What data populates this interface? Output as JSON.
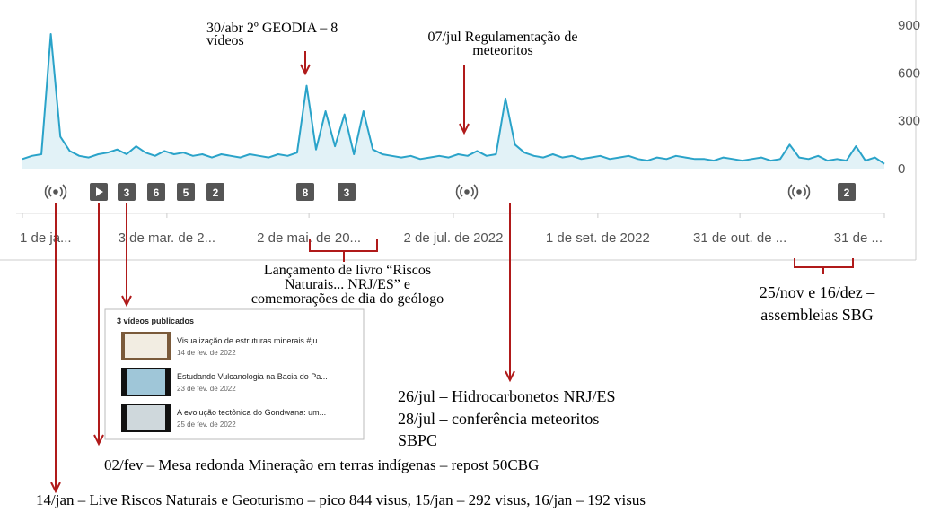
{
  "chart_data": {
    "type": "line",
    "color": "#2aa3c9",
    "fill": "#e2f2f7",
    "x": [
      0,
      4,
      8,
      12,
      16,
      20,
      24,
      28,
      32,
      36,
      40,
      44,
      48,
      52,
      56,
      60,
      64,
      68,
      72,
      76,
      80,
      84,
      88,
      92,
      96,
      100,
      104,
      108,
      112,
      116,
      120,
      124,
      128,
      132,
      136,
      140,
      144,
      148,
      152,
      156,
      160,
      164,
      168,
      172,
      176,
      180,
      184,
      188,
      192,
      196,
      200,
      204,
      208,
      212,
      216,
      220,
      224,
      228,
      232,
      236,
      240,
      244,
      248,
      252,
      256,
      260,
      264,
      268,
      272,
      276,
      280,
      284,
      288,
      292,
      296,
      300,
      304,
      308,
      312,
      316,
      320,
      324,
      328,
      332,
      336,
      340,
      344,
      348,
      352,
      356,
      360,
      364
    ],
    "values": [
      60,
      80,
      90,
      844,
      200,
      110,
      80,
      70,
      90,
      100,
      120,
      90,
      140,
      100,
      80,
      110,
      90,
      100,
      80,
      90,
      70,
      90,
      80,
      70,
      90,
      80,
      70,
      90,
      80,
      100,
      520,
      120,
      360,
      140,
      340,
      90,
      360,
      120,
      90,
      80,
      70,
      80,
      60,
      70,
      80,
      70,
      90,
      80,
      110,
      80,
      90,
      440,
      150,
      100,
      80,
      70,
      90,
      70,
      80,
      60,
      70,
      80,
      60,
      70,
      80,
      60,
      50,
      70,
      60,
      80,
      70,
      60,
      60,
      50,
      70,
      60,
      50,
      60,
      70,
      50,
      60,
      150,
      70,
      60,
      80,
      50,
      60,
      50,
      140,
      50,
      70,
      30
    ],
    "xlim": [
      0,
      364
    ],
    "xticks": [
      {
        "value": 0,
        "label": "1 de ja..."
      },
      {
        "value": 61,
        "label": "3 de mar. de 2..."
      },
      {
        "value": 121,
        "label": "2 de mai. de 20..."
      },
      {
        "value": 182,
        "label": "2 de jul. de 2022"
      },
      {
        "value": 243,
        "label": "1 de set. de 2022"
      },
      {
        "value": 303,
        "label": "31 de out. de ..."
      },
      {
        "value": 364,
        "label": "31 de ..."
      }
    ],
    "ylim": [
      0,
      900
    ],
    "yticks": [
      0,
      300,
      600,
      900
    ],
    "grid": false
  },
  "event_counts": [
    "3",
    "6",
    "5",
    "2",
    "8",
    "3",
    "2"
  ],
  "annotations": {
    "geodia": [
      "30/abr 2º GEODIA – 8",
      "vídeos"
    ],
    "meteoritos": [
      "07/jul Regulamentação de",
      "meteoritos"
    ],
    "livro": [
      "Lançamento de livro “Riscos",
      "Naturais... NRJ/ES” e",
      "comemorações de dia do geólogo"
    ],
    "assembleias": [
      "25/nov e 16/dez –",
      "assembleias SBG"
    ],
    "julho": [
      "26/jul – Hidrocarbonetos NRJ/ES",
      "28/jul – conferência meteoritos",
      "SBPC"
    ],
    "mesa": "02/fev – Mesa redonda Mineração em terras indígenas – repost 50CBG",
    "live": "14/jan – Live Riscos Naturais e Geoturismo – pico 844 visus, 15/jan – 292 visus, 16/jan – 192 visus"
  },
  "inset": {
    "title": "3 vídeos publicados",
    "videos": [
      {
        "title": "Visualização de estruturas minerais #ju...",
        "date": "14 de fev. de 2022"
      },
      {
        "title": "Estudando Vulcanologia na Bacia do Pa...",
        "date": "23 de fev. de 2022"
      },
      {
        "title": "A evolução tectônica do Gondwana: um...",
        "date": "25 de fev. de 2022"
      }
    ]
  }
}
